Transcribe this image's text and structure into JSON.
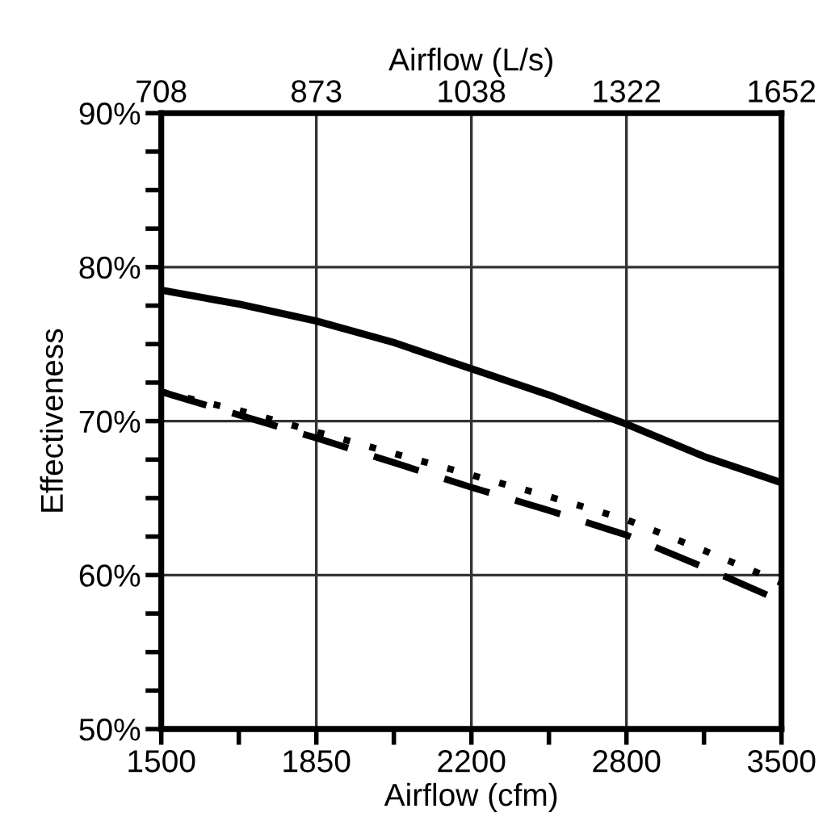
{
  "chart_data": {
    "type": "line",
    "xlabel": "Airflow (cfm)",
    "ylabel": "Effectiveness",
    "x2label": "Airflow (L/s)",
    "categories": [
      "1500",
      null,
      "1850",
      null,
      "2200",
      null,
      "2800",
      null,
      "3500"
    ],
    "annotations": [
      "708",
      "873",
      "1038",
      "1322",
      "1652"
    ],
    "ylim": [
      50,
      90
    ],
    "yticks": [
      {
        "value": 50,
        "label": "50%"
      },
      {
        "value": 52.5,
        "label": null
      },
      {
        "value": 55,
        "label": null
      },
      {
        "value": 57.5,
        "label": null
      },
      {
        "value": 60,
        "label": "60%"
      },
      {
        "value": 62.5,
        "label": null
      },
      {
        "value": 65,
        "label": null
      },
      {
        "value": 67.5,
        "label": null
      },
      {
        "value": 70,
        "label": "70%"
      },
      {
        "value": 72.5,
        "label": null
      },
      {
        "value": 75,
        "label": null
      },
      {
        "value": 77.5,
        "label": null
      },
      {
        "value": 80,
        "label": "80%"
      },
      {
        "value": 82.5,
        "label": null
      },
      {
        "value": 85,
        "label": null
      },
      {
        "value": 87.5,
        "label": null
      },
      {
        "value": 90,
        "label": "90%"
      }
    ],
    "grid": true,
    "marker": "none",
    "series": [
      {
        "color": "#000000",
        "line_style": "solid",
        "values": [
          78.5,
          77.6,
          76.5,
          75.1,
          73.4,
          71.7,
          69.8,
          67.7,
          66.0
        ]
      },
      {
        "color": "#000000",
        "line_style": "dashed",
        "values": [
          71.9,
          70.4,
          68.9,
          67.3,
          65.7,
          64.2,
          62.6,
          60.5,
          58.3
        ]
      },
      {
        "color": "#000000",
        "line_style": "dotted",
        "values": [
          71.9,
          70.7,
          69.3,
          67.9,
          66.5,
          65.1,
          63.6,
          61.6,
          59.5
        ]
      }
    ]
  }
}
